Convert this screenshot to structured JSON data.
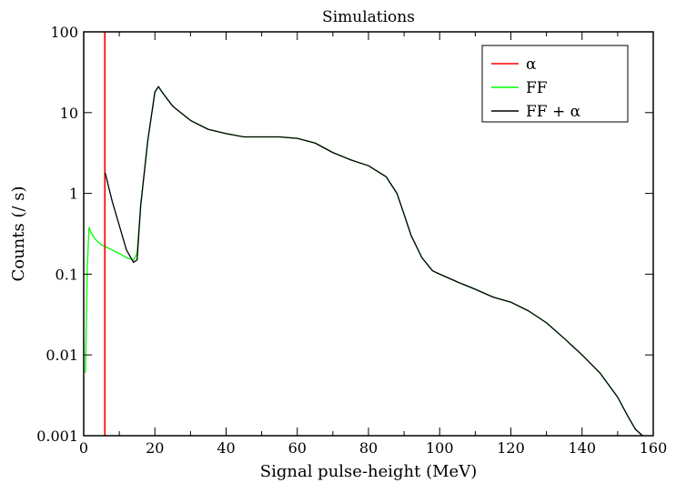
{
  "chart_data": {
    "type": "line",
    "title": "Simulations",
    "xlabel": "Signal pulse-height (MeV)",
    "ylabel": "Counts (/ s)",
    "xlim": [
      0,
      160
    ],
    "ylim": [
      0.001,
      100
    ],
    "yscale": "log",
    "grid": false,
    "legend_position": "top-right",
    "x_ticks": [
      0,
      20,
      40,
      60,
      80,
      100,
      120,
      140,
      160
    ],
    "x_tick_labels": [
      "0",
      "20",
      "40",
      "60",
      "80",
      "100",
      "120",
      "140",
      "160"
    ],
    "y_ticks": [
      0.001,
      0.01,
      0.1,
      1,
      10,
      100
    ],
    "y_tick_labels": [
      "0.001",
      "0.01",
      "0.1",
      "1",
      "10",
      "100"
    ],
    "series": [
      {
        "name": "α",
        "color": "#ff0000",
        "x": [
          5.9,
          5.9,
          6.0,
          6.0
        ],
        "y": [
          0.001,
          100,
          100,
          0.001
        ]
      },
      {
        "name": "FF",
        "color": "#00ff00",
        "x": [
          0.5,
          1,
          1.5,
          2,
          3,
          4,
          5,
          6,
          8,
          10,
          12,
          14,
          15,
          16,
          18,
          20,
          21,
          22,
          25,
          30,
          35,
          40,
          45,
          50,
          55,
          60,
          65,
          70,
          75,
          80,
          85,
          88,
          90,
          92,
          95,
          98,
          100,
          105,
          110,
          115,
          120,
          125,
          130,
          135,
          140,
          145,
          150,
          153,
          155,
          157
        ],
        "y": [
          0.006,
          0.12,
          0.38,
          0.33,
          0.28,
          0.25,
          0.23,
          0.22,
          0.2,
          0.18,
          0.16,
          0.15,
          0.18,
          0.7,
          4.5,
          18,
          21,
          18,
          12,
          8,
          6.2,
          5.5,
          5.0,
          5.0,
          5.0,
          4.8,
          4.2,
          3.2,
          2.6,
          2.2,
          1.6,
          1.0,
          0.55,
          0.3,
          0.16,
          0.11,
          0.1,
          0.08,
          0.065,
          0.052,
          0.045,
          0.035,
          0.025,
          0.016,
          0.01,
          0.006,
          0.003,
          0.0017,
          0.0012,
          0.001
        ]
      },
      {
        "name": "FF + α",
        "color": "#000000",
        "x": [
          6,
          6.5,
          7,
          8,
          10,
          12,
          14,
          15,
          16,
          18,
          20,
          21,
          22,
          25,
          30,
          35,
          40,
          45,
          50,
          55,
          60,
          65,
          70,
          75,
          80,
          85,
          88,
          90,
          92,
          95,
          98,
          100,
          105,
          110,
          115,
          120,
          125,
          130,
          135,
          140,
          145,
          150,
          153,
          155,
          157
        ],
        "y": [
          1.8,
          1.5,
          1.2,
          0.8,
          0.4,
          0.2,
          0.14,
          0.15,
          0.7,
          4.5,
          18,
          21,
          18,
          12,
          8,
          6.2,
          5.5,
          5.0,
          5.0,
          5.0,
          4.8,
          4.2,
          3.2,
          2.6,
          2.2,
          1.6,
          1.0,
          0.55,
          0.3,
          0.16,
          0.11,
          0.1,
          0.08,
          0.065,
          0.052,
          0.045,
          0.035,
          0.025,
          0.016,
          0.01,
          0.006,
          0.003,
          0.0017,
          0.0012,
          0.001
        ]
      }
    ]
  }
}
